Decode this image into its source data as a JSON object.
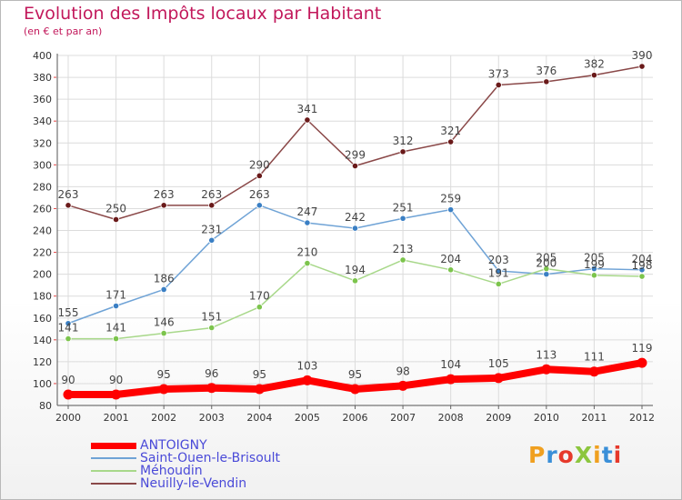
{
  "header": {
    "title": "Evolution des Impôts locaux par Habitant",
    "subtitle": "(en € et par an)"
  },
  "logo": {
    "text": "ProXiti",
    "letters": [
      "P",
      "r",
      "o",
      "X",
      "i",
      "t",
      "i"
    ],
    "colors": [
      "#f0a020",
      "#3a8fd8",
      "#e6392b",
      "#8cc63e",
      "#f0a020",
      "#3a8fd8",
      "#e6392b"
    ]
  },
  "chart_data": {
    "type": "line",
    "title": "Evolution des Impôts locaux par Habitant",
    "subtitle": "(en € et par an)",
    "xlabel": "",
    "ylabel": "",
    "categories": [
      "2000",
      "2001",
      "2002",
      "2003",
      "2004",
      "2005",
      "2006",
      "2007",
      "2008",
      "2009",
      "2010",
      "2011",
      "2012"
    ],
    "ylim": [
      80,
      400
    ],
    "yticks": [
      80,
      100,
      120,
      140,
      160,
      180,
      200,
      220,
      240,
      260,
      280,
      300,
      320,
      340,
      360,
      380,
      400
    ],
    "grid": true,
    "legend_position": "bottom-left",
    "series": [
      {
        "name": "ANTOIGNY",
        "color": "#ff0000",
        "emphasis": true,
        "values": [
          90,
          90,
          95,
          96,
          95,
          103,
          95,
          98,
          104,
          105,
          113,
          111,
          119
        ],
        "labels": [
          "90",
          "90",
          "95",
          "96",
          "95",
          "103",
          "95",
          "98",
          "104",
          "105",
          "113",
          "111",
          "119"
        ]
      },
      {
        "name": "Saint-Ouen-le-Brisoult",
        "color": "#6fa3d6",
        "marker": "#3a7fc4",
        "emphasis": false,
        "values": [
          155,
          171,
          186,
          231,
          263,
          247,
          242,
          251,
          259,
          203,
          200,
          205,
          204
        ],
        "labels": [
          "155",
          "171",
          "186",
          "231",
          "263",
          "247",
          "242",
          "251",
          "259",
          "203",
          "200",
          "205",
          "204"
        ]
      },
      {
        "name": "Méhoudin",
        "color": "#a8d88a",
        "marker": "#7cc44c",
        "emphasis": false,
        "values": [
          141,
          141,
          146,
          151,
          170,
          210,
          194,
          213,
          204,
          191,
          205,
          199,
          198
        ],
        "labels": [
          "141",
          "141",
          "146",
          "151",
          "170",
          "210",
          "194",
          "213",
          "204",
          "191",
          "205",
          "199",
          "198"
        ]
      },
      {
        "name": "Neuilly-le-Vendin",
        "color": "#8a4848",
        "marker": "#6a1a1a",
        "emphasis": false,
        "values": [
          263,
          250,
          263,
          263,
          290,
          341,
          299,
          312,
          321,
          373,
          376,
          382,
          390
        ],
        "labels": [
          "263",
          "250",
          "263",
          "263",
          "290",
          "341",
          "299",
          "312",
          "321",
          "373",
          "376",
          "382",
          "390"
        ]
      }
    ]
  }
}
